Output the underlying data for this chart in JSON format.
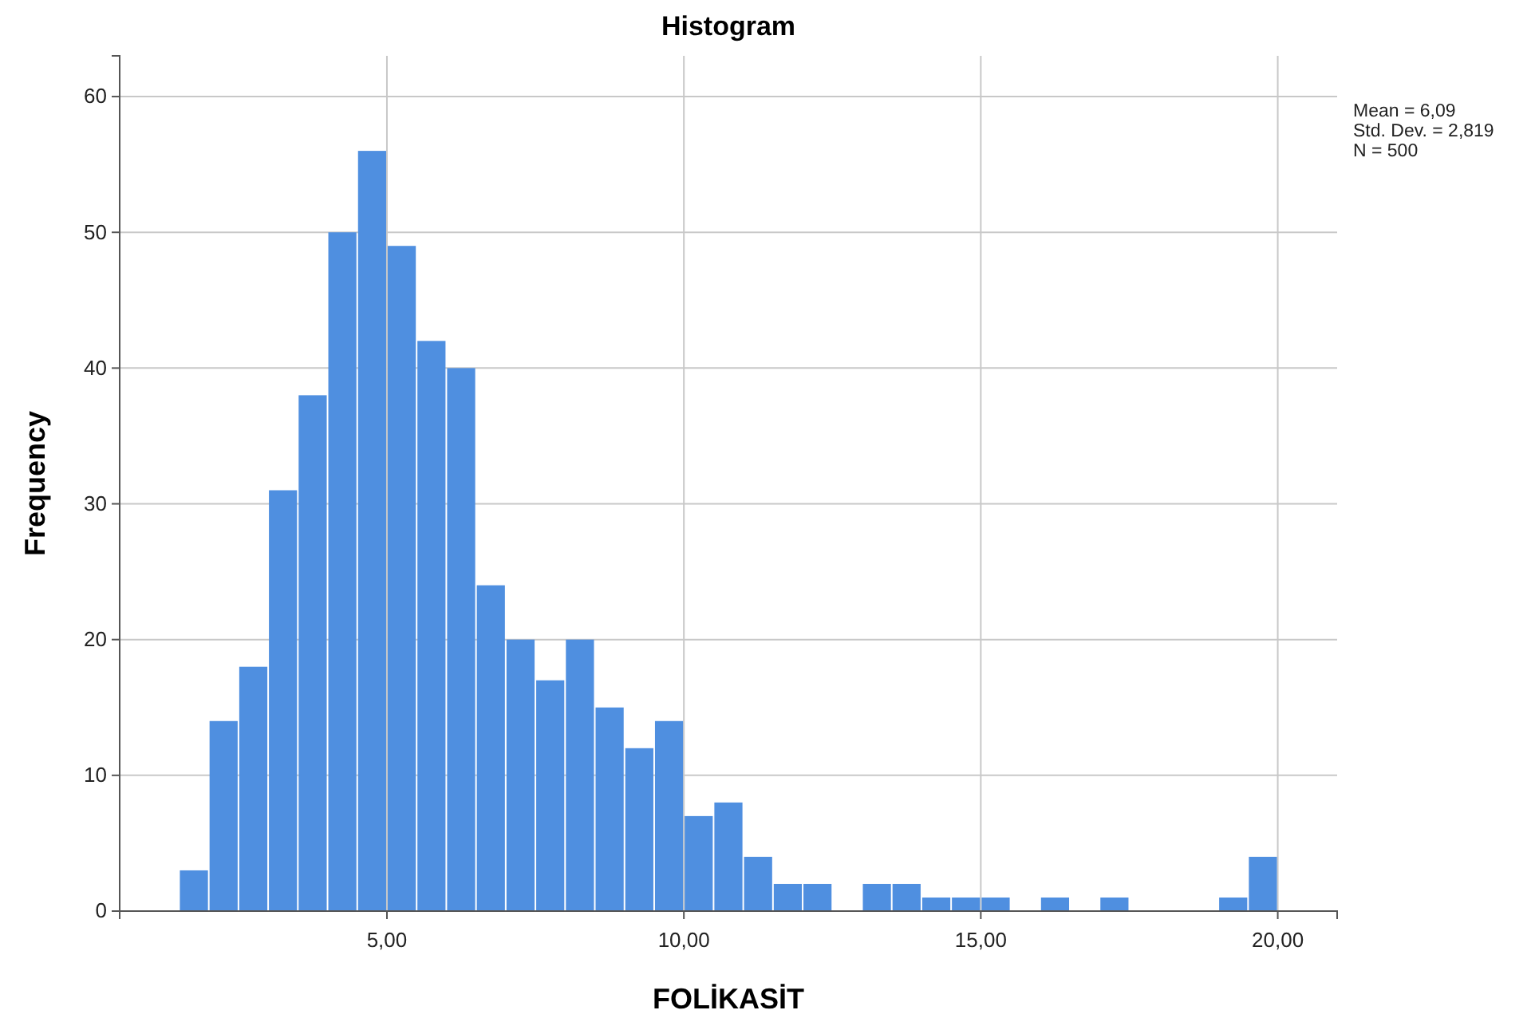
{
  "chart_data": {
    "type": "histogram",
    "title": "Histogram",
    "xlabel": "FOLİKASİT",
    "ylabel": "Frequency",
    "bins": [
      1.5,
      2,
      2.5,
      3,
      3.5,
      4,
      4.5,
      5,
      5.5,
      6,
      6.5,
      7,
      7.5,
      8,
      8.5,
      9,
      9.5,
      10,
      10.5,
      11,
      11.5,
      12,
      12.5,
      13,
      13.5,
      14,
      14.5,
      15,
      15.5,
      16,
      16.5,
      17,
      17.5,
      18,
      18.5,
      19,
      19.5,
      20
    ],
    "values": [
      3,
      14,
      18,
      31,
      38,
      50,
      56,
      49,
      42,
      40,
      24,
      20,
      17,
      20,
      15,
      12,
      14,
      7,
      8,
      4,
      2,
      2,
      0,
      2,
      2,
      1,
      1,
      1,
      0,
      1,
      0,
      1,
      0,
      0,
      0,
      1,
      4
    ],
    "color": "#4f8fe0",
    "xlim": [
      0.5,
      21
    ],
    "ylim": [
      0,
      63
    ],
    "xticks": [
      {
        "value": 5,
        "label": "5,00"
      },
      {
        "value": 10,
        "label": "10,00"
      },
      {
        "value": 15,
        "label": "15,00"
      },
      {
        "value": 20,
        "label": "20,00"
      }
    ],
    "yticks": [
      0,
      10,
      20,
      30,
      40,
      50,
      60
    ],
    "grid": true,
    "annotations": [
      "Mean = 6,09",
      "Std. Dev. = 2,819",
      "N = 500"
    ]
  }
}
